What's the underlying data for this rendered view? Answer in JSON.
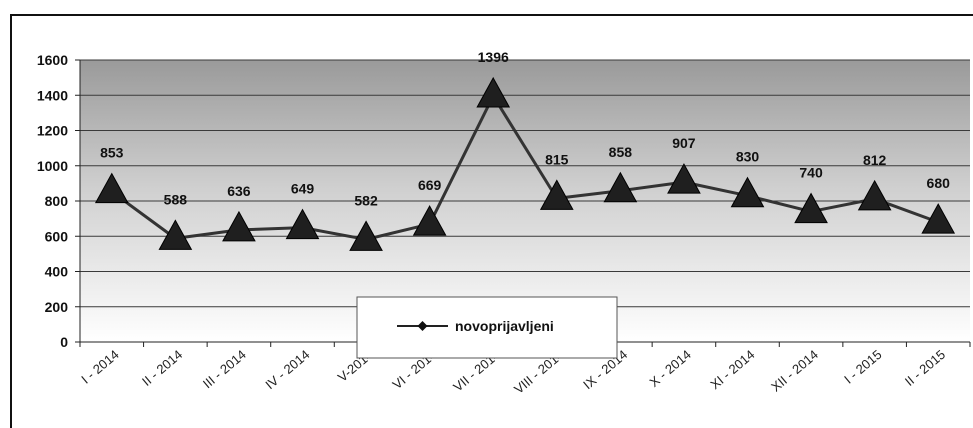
{
  "chart_data": {
    "type": "line",
    "categories": [
      "I - 2014",
      "II - 2014",
      "III - 2014",
      "IV - 2014",
      "V-2014",
      "VI - 2014",
      "VII - 2014",
      "VIII - 2014",
      "IX - 2014",
      "X - 2014",
      "XI - 2014",
      "XII - 2014",
      "I - 2015",
      "II - 2015"
    ],
    "series": [
      {
        "name": "novoprijavljeni",
        "values": [
          853,
          588,
          636,
          649,
          582,
          669,
          1396,
          815,
          858,
          907,
          830,
          740,
          812,
          680
        ]
      }
    ],
    "yticks": [
      "0",
      "200",
      "400",
      "600",
      "800",
      "1000",
      "1200",
      "1400",
      "1600"
    ],
    "ylim": [
      0,
      1600
    ],
    "grid": true,
    "legend_position": "bottom-center",
    "colors": {
      "line": "#333333",
      "marker": "#1f1f1f",
      "grid": "#3a3a3a"
    }
  }
}
